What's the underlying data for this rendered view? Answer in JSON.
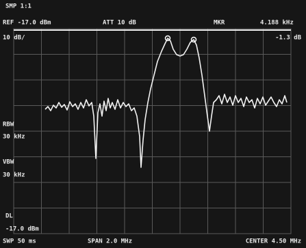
{
  "screen": {
    "mode": "SMP 1:1",
    "ref_level": "REF -17.0 dBm",
    "attenuation": "ATT 10 dB",
    "marker": "MKR",
    "marker_freq": "4.188 kHz",
    "marker_level": "-1.3 dB",
    "scale": "10 dB/",
    "rbw_label": "RBW",
    "rbw": "30 kHz",
    "vbw_label": "VBW",
    "vbw": "30 kHz",
    "dl_label": "DL",
    "dl": "-17.0 dBm",
    "sweep": "SWP 50 ms",
    "span": "SPAN 2.0 MHz",
    "center": "CENTER 4.50 MHz"
  }
}
